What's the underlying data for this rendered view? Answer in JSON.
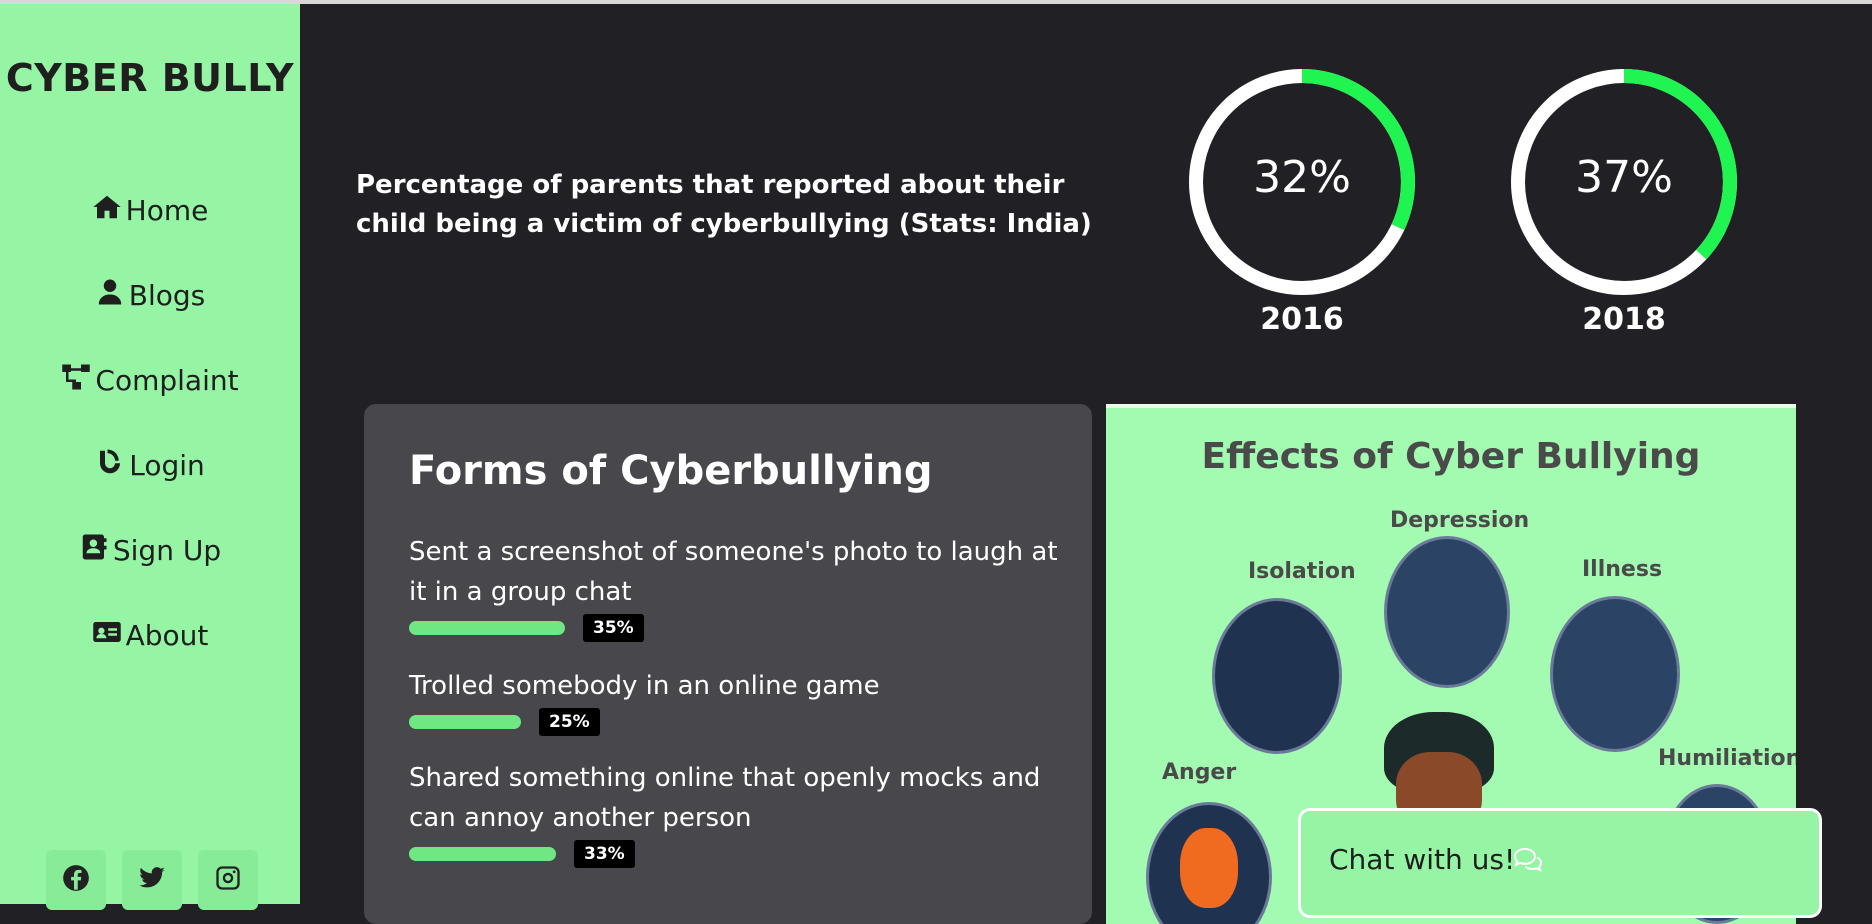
{
  "brand": "CYBER BULLY",
  "nav": [
    {
      "label": "Home",
      "icon": "home-icon"
    },
    {
      "label": "Blogs",
      "icon": "user-icon"
    },
    {
      "label": "Complaint",
      "icon": "sitemap-icon"
    },
    {
      "label": "Login",
      "icon": "blogger-icon"
    },
    {
      "label": "Sign Up",
      "icon": "address-book-icon"
    },
    {
      "label": "About",
      "icon": "id-card-icon"
    }
  ],
  "socials": [
    "facebook-icon",
    "twitter-icon",
    "instagram-icon"
  ],
  "stats": {
    "description": "Percentage of parents that reported about their child being a victim of cyberbullying (Stats: India)",
    "items": [
      {
        "value": "32%",
        "year": "2016",
        "fraction": 0.32
      },
      {
        "value": "37%",
        "year": "2018",
        "fraction": 0.37
      }
    ]
  },
  "forms": {
    "title": "Forms of Cyberbullying",
    "items": [
      {
        "text": "Sent a screenshot of someone's photo to laugh at it in a group chat",
        "percent": "35%",
        "fraction": 0.35
      },
      {
        "text": "Trolled somebody in an online game",
        "percent": "25%",
        "fraction": 0.25
      },
      {
        "text": "Shared something online that openly mocks and can annoy another person",
        "percent": "33%",
        "fraction": 0.33
      }
    ]
  },
  "effects": {
    "title": "Effects of Cyber Bullying",
    "labels": [
      "Depression",
      "Isolation",
      "Illness",
      "Anger",
      "Humiliation"
    ]
  },
  "chat": {
    "label": "Chat with us!"
  },
  "colors": {
    "accent": "#95f5a4",
    "progress": "#6fe884",
    "ring": "#1ff450",
    "background": "#212125"
  }
}
